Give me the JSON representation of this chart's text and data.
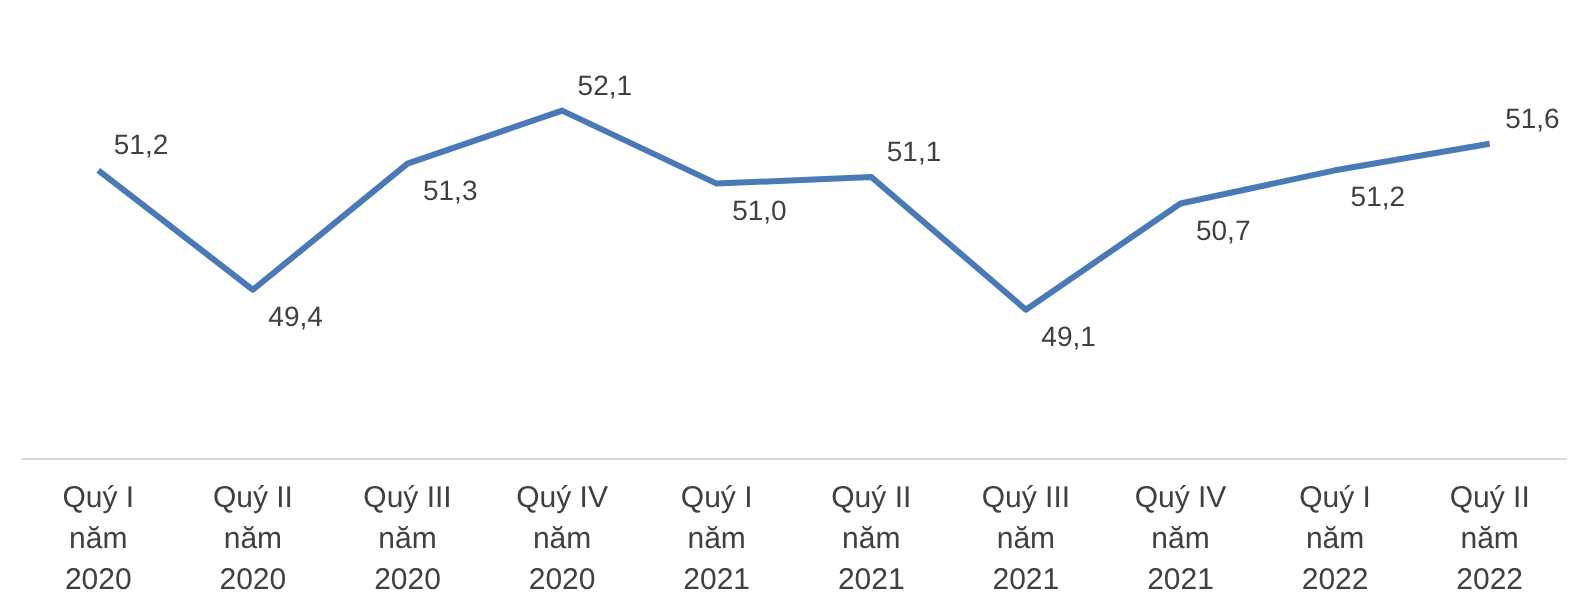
{
  "chart_data": {
    "type": "line",
    "categories": [
      "Quý I\nnăm\n2020",
      "Quý II\nnăm\n2020",
      "Quý III\nnăm\n2020",
      "Quý IV\nnăm\n2020",
      "Quý I\nnăm\n2021",
      "Quý II\nnăm\n2021",
      "Quý III\nnăm\n2021",
      "Quý IV\nnăm\n2021",
      "Quý I\nnăm\n2022",
      "Quý II\nnăm\n2022"
    ],
    "series": [
      {
        "color": "#4a7ab5",
        "values": [
          51.2,
          49.4,
          51.3,
          52.1,
          51.0,
          51.1,
          49.1,
          50.7,
          51.2,
          51.6
        ],
        "value_labels": [
          "51,2",
          "49,4",
          "51,3",
          "52,1",
          "51,0",
          "51,1",
          "49,1",
          "50,7",
          "51,2",
          "51,6"
        ]
      }
    ],
    "grid": false,
    "marker": "none",
    "line_style": "solid"
  }
}
